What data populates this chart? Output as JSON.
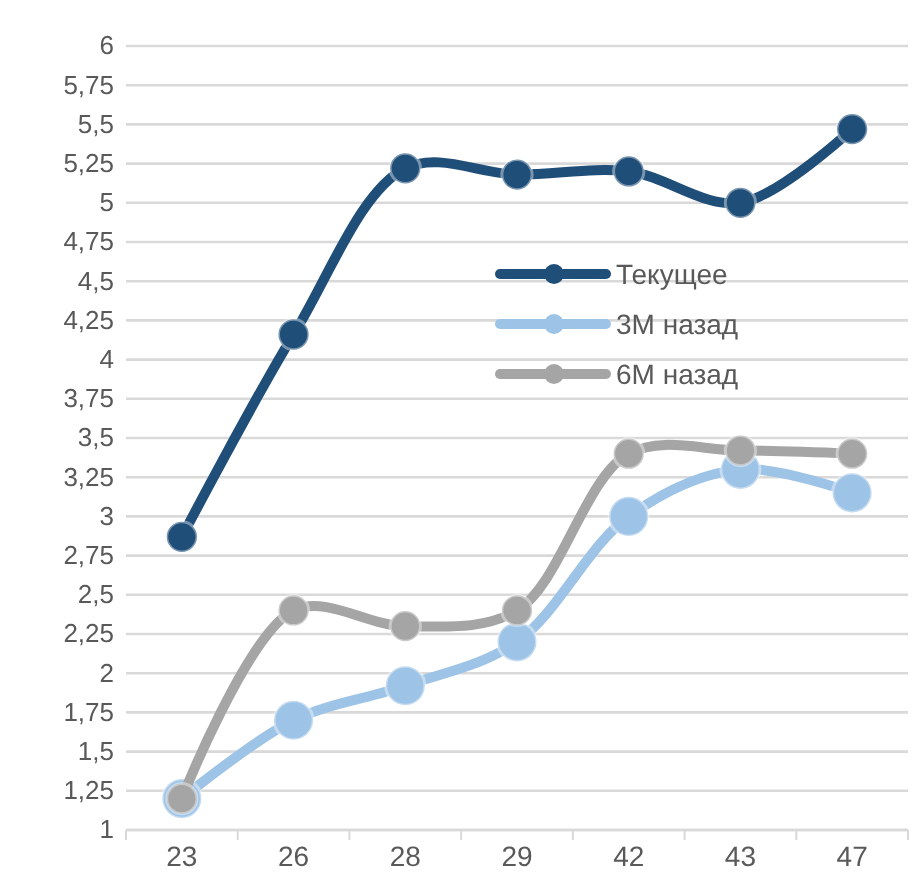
{
  "chart_data": {
    "type": "line",
    "categories": [
      "23",
      "26",
      "28",
      "29",
      "42",
      "43",
      "47"
    ],
    "series": [
      {
        "name": "Текущее",
        "color": "#1f4e79",
        "values": [
          2.87,
          4.16,
          5.22,
          5.18,
          5.2,
          5.0,
          5.47
        ]
      },
      {
        "name": "3M назад",
        "color": "#9dc3e6",
        "values": [
          1.2,
          1.7,
          1.92,
          2.2,
          3.0,
          3.3,
          3.15
        ]
      },
      {
        "name": "6M назад",
        "color": "#a5a5a5",
        "values": [
          1.2,
          2.4,
          2.3,
          2.4,
          3.4,
          3.42,
          3.4
        ]
      }
    ],
    "ylim": [
      1,
      6
    ],
    "yticks": [
      1,
      {
        "value": 1.25,
        "label": "1,25"
      },
      {
        "value": 1.5,
        "label": "1,5"
      },
      {
        "value": 1.75,
        "label": "1,75"
      },
      2,
      {
        "value": 2.25,
        "label": "2,25"
      },
      {
        "value": 2.5,
        "label": "2,5"
      },
      {
        "value": 2.75,
        "label": "2,75"
      },
      3,
      {
        "value": 3.25,
        "label": "3,25"
      },
      {
        "value": 3.5,
        "label": "3,5"
      },
      {
        "value": 3.75,
        "label": "3,75"
      },
      4,
      {
        "value": 4.25,
        "label": "4,25"
      },
      {
        "value": 4.5,
        "label": "4,5"
      },
      {
        "value": 4.75,
        "label": "4,75"
      },
      5,
      {
        "value": 5.25,
        "label": "5,25"
      },
      {
        "value": 5.5,
        "label": "5,5"
      },
      {
        "value": 5.75,
        "label": "5,75"
      },
      6
    ],
    "grid": "y",
    "legend": "right",
    "marker": "circle",
    "line_style": "solid"
  }
}
